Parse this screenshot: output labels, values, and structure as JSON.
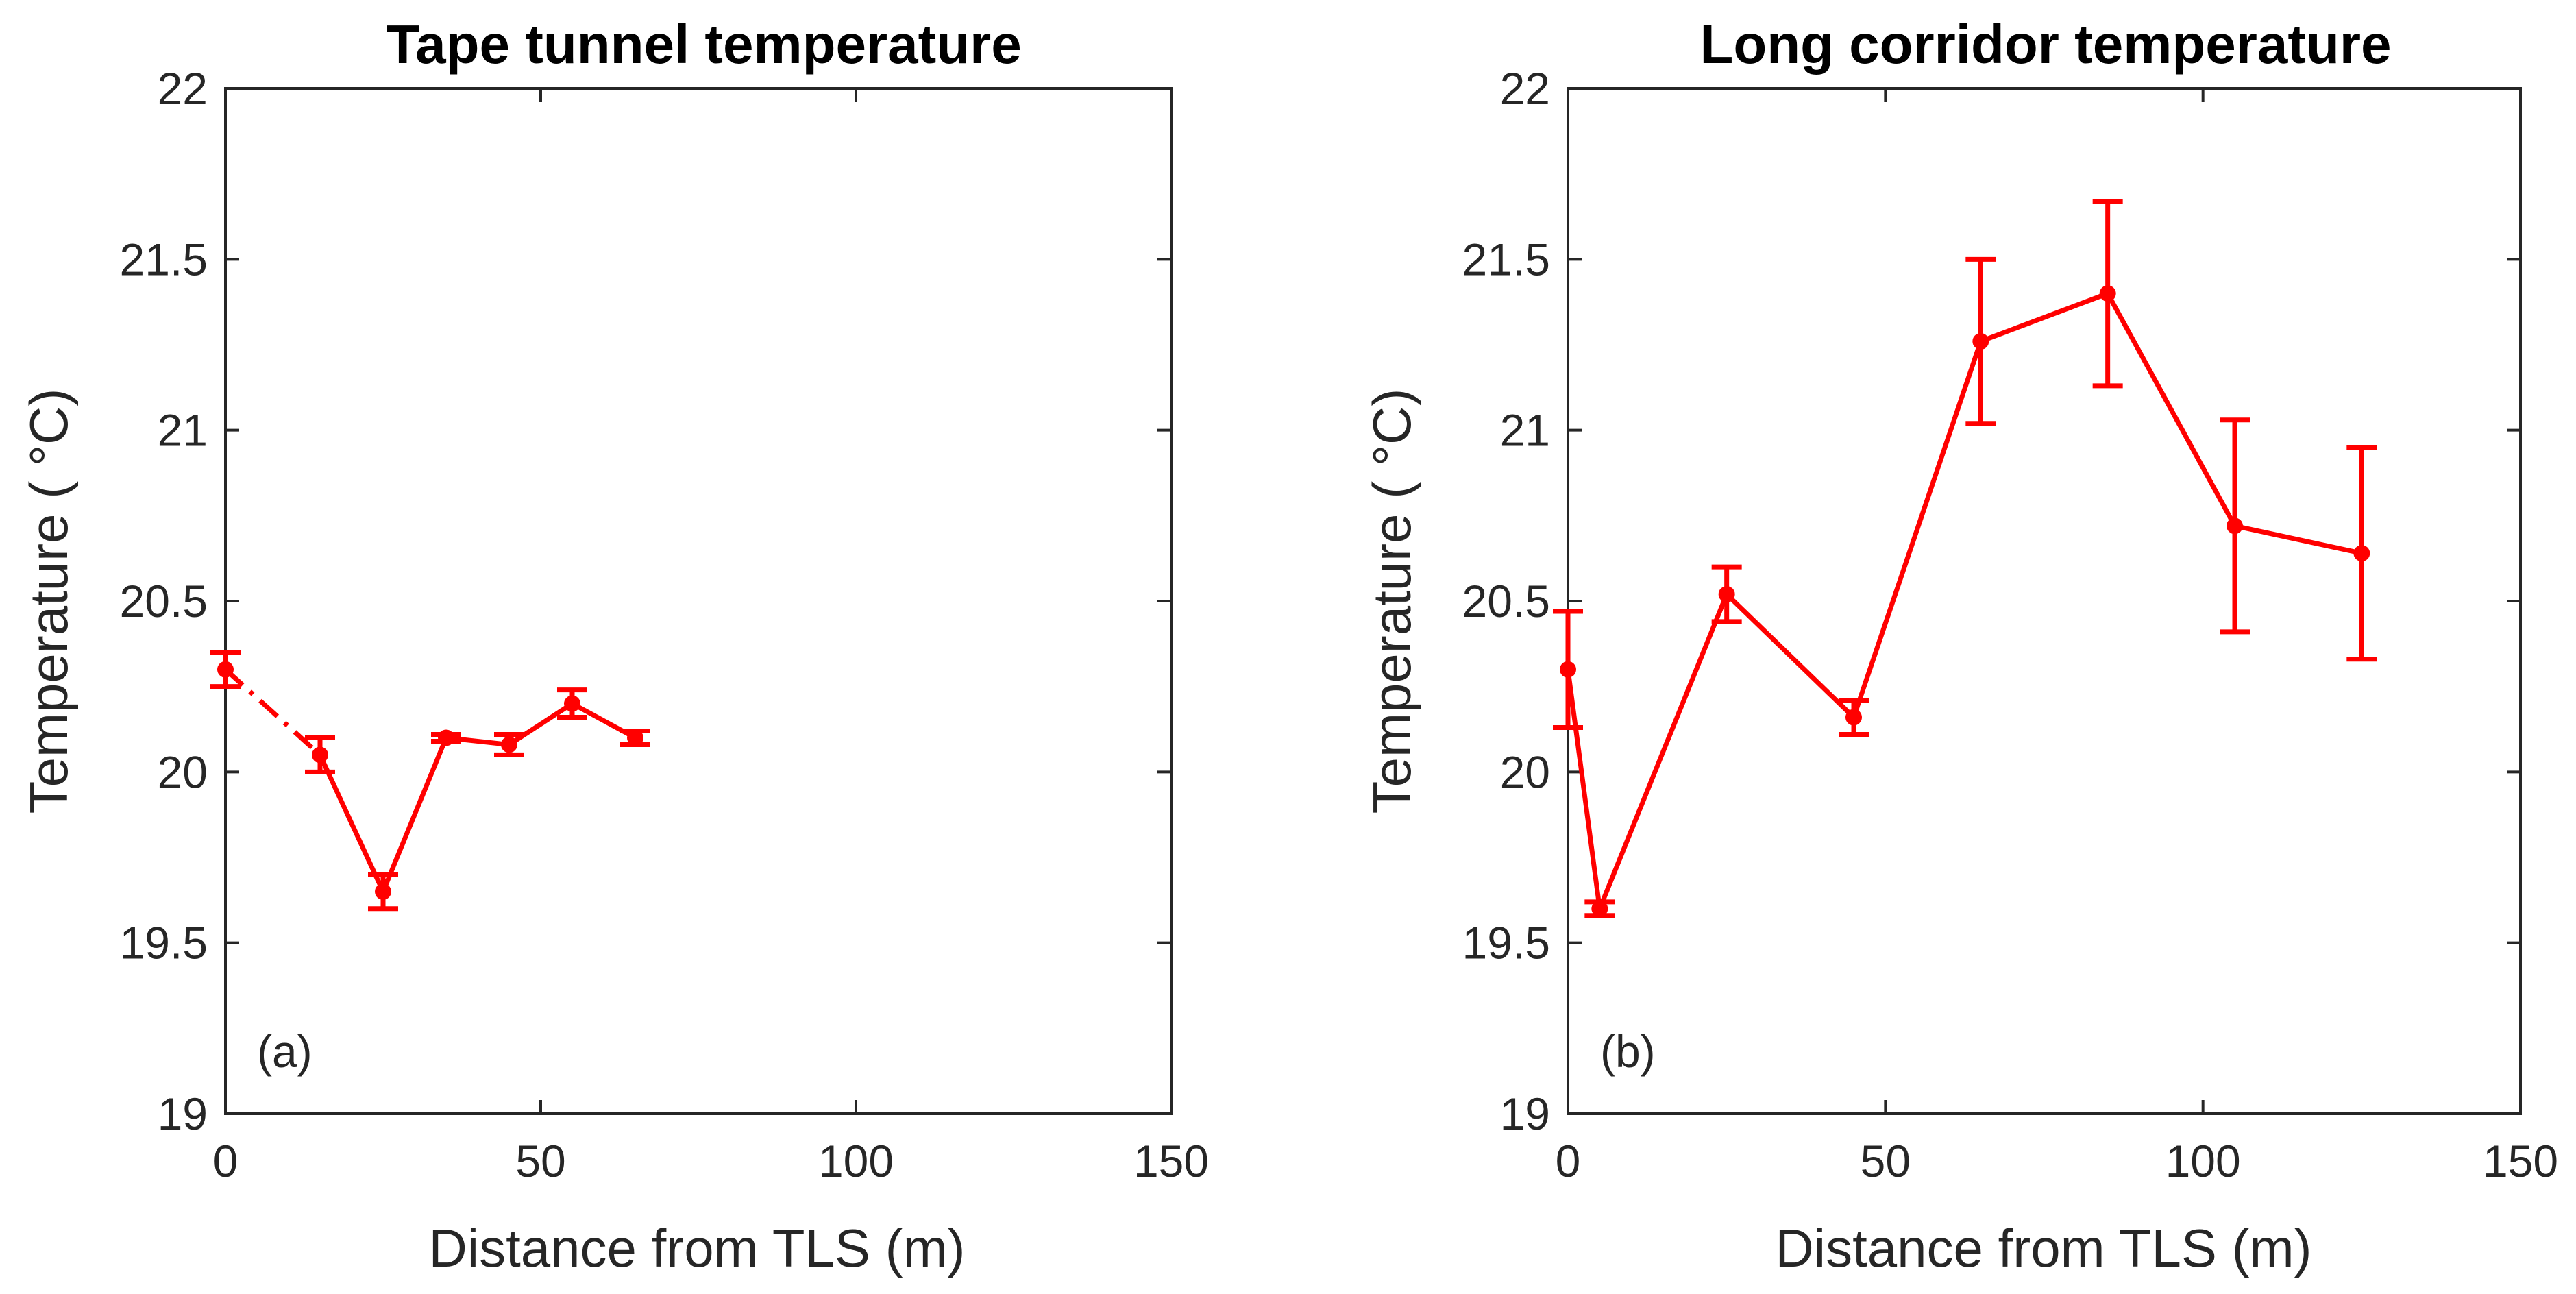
{
  "chart_data": [
    {
      "type": "line",
      "title": "Tape tunnel temperature",
      "xlabel": "Distance from TLS (m)",
      "ylabel": "Temperature ( °C)",
      "panel_label": "(a)",
      "xlim": [
        0,
        150
      ],
      "ylim": [
        19,
        22
      ],
      "xticks": [
        0,
        50,
        100,
        150
      ],
      "yticks": [
        19,
        19.5,
        20,
        20.5,
        21,
        21.5,
        22
      ],
      "xtick_labels": [
        "0",
        "50",
        "100",
        "150"
      ],
      "ytick_labels": [
        "19",
        "19.5",
        "20",
        "20.5",
        "21",
        "21.5",
        "22"
      ],
      "grid": false,
      "color": "#ff0000",
      "series": [
        {
          "name": "Tape tunnel",
          "x": [
            0,
            15,
            25,
            35,
            45,
            55,
            65
          ],
          "y": [
            20.3,
            20.05,
            19.65,
            20.1,
            20.08,
            20.2,
            20.1
          ],
          "error": [
            0.05,
            0.05,
            0.05,
            0.01,
            0.03,
            0.04,
            0.02
          ],
          "dashed_first_segment": true
        }
      ]
    },
    {
      "type": "line",
      "title": "Long corridor temperature",
      "xlabel": "Distance from TLS (m)",
      "ylabel": "Temperature ( °C)",
      "panel_label": "(b)",
      "xlim": [
        0,
        150
      ],
      "ylim": [
        19,
        22
      ],
      "xticks": [
        0,
        50,
        100,
        150
      ],
      "yticks": [
        19,
        19.5,
        20,
        20.5,
        21,
        21.5,
        22
      ],
      "xtick_labels": [
        "0",
        "50",
        "100",
        "150"
      ],
      "ytick_labels": [
        "19",
        "19.5",
        "20",
        "20.5",
        "21",
        "21.5",
        "22"
      ],
      "grid": false,
      "color": "#ff0000",
      "series": [
        {
          "name": "Long corridor",
          "x": [
            0,
            5,
            25,
            45,
            65,
            85,
            105,
            125
          ],
          "y": [
            20.3,
            19.6,
            20.52,
            20.16,
            21.26,
            21.4,
            20.72,
            20.64
          ],
          "error": [
            0.17,
            0.02,
            0.08,
            0.05,
            0.24,
            0.27,
            0.31,
            0.31
          ],
          "dashed_first_segment": false
        }
      ]
    }
  ]
}
